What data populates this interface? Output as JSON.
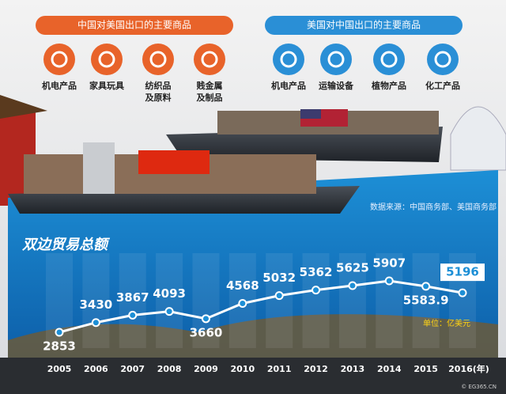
{
  "panels": [
    {
      "title": "中国对美国出口的主要商品",
      "items": [
        [
          "机电产品"
        ],
        [
          "家具玩具"
        ],
        [
          "纺织品",
          "及原料"
        ],
        [
          "贱金属",
          "及制品"
        ]
      ]
    },
    {
      "title": "美国对中国出口的主要商品",
      "items": [
        [
          "机电产品"
        ],
        [
          "运输设备"
        ],
        [
          "植物产品"
        ],
        [
          "化工产品"
        ]
      ]
    }
  ],
  "source": "数据来源：中国商务部、美国商务部",
  "watermark": "© EG365.CN",
  "chart_data": {
    "type": "line",
    "title": "双边贸易总额",
    "unit": "单位：亿美元",
    "categories": [
      "2005",
      "2006",
      "2007",
      "2008",
      "2009",
      "2010",
      "2011",
      "2012",
      "2013",
      "2014",
      "2015",
      "2016(年)"
    ],
    "values": [
      2853,
      3430,
      3867,
      4093,
      3660,
      4568,
      5032,
      5362,
      5625,
      5907,
      5583.9,
      5196
    ],
    "color": "#ffffff"
  }
}
